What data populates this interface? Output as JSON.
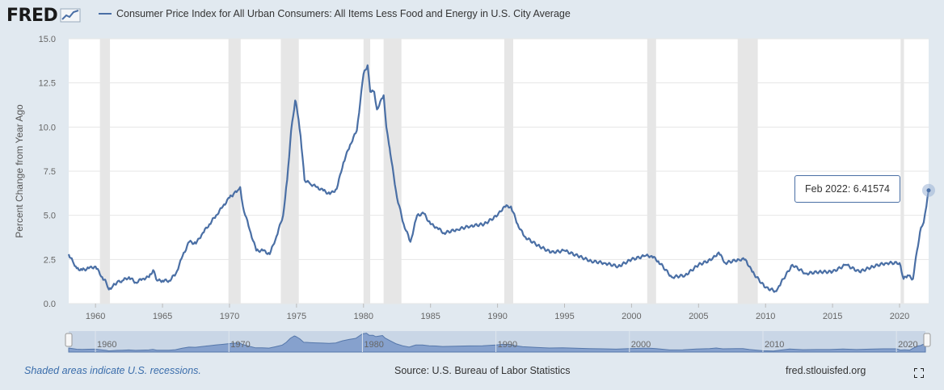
{
  "header": {
    "logo_text": "FRED",
    "legend_label": "Consumer Price Index for All Urban Consumers: All Items Less Food and Energy in U.S. City Average"
  },
  "colors": {
    "series": "#4a6fa5",
    "recession": "#e6e6e6",
    "background": "#e1e9f0"
  },
  "tooltip": {
    "date": "Feb 2022",
    "separator": ":",
    "value": "6.41574"
  },
  "footer": {
    "note": "Shaded areas indicate U.S. recessions.",
    "source": "Source: U.S. Bureau of Labor Statistics",
    "site": "fred.stlouisfed.org"
  },
  "icons": {
    "fullscreen": "fullscreen-icon",
    "logo_graph": "fred-graph-icon"
  },
  "chart_data": {
    "type": "line",
    "ylabel": "Percent Change from Year Ago",
    "ylim": [
      0,
      15
    ],
    "xlim": [
      1958.0,
      2022.17
    ],
    "y_ticks": [
      "0.0",
      "2.5",
      "5.0",
      "7.5",
      "10.0",
      "12.5",
      "15.0"
    ],
    "x_ticks": [
      "1960",
      "1965",
      "1970",
      "1975",
      "1980",
      "1985",
      "1990",
      "1995",
      "2000",
      "2005",
      "2010",
      "2015",
      "2020"
    ],
    "navigator_ticks": [
      "1960",
      "1970",
      "1980",
      "1990",
      "2000",
      "2010",
      "2020"
    ],
    "recessions": [
      [
        1960.33,
        1961.08
      ],
      [
        1969.92,
        1970.83
      ],
      [
        1973.83,
        1975.17
      ],
      [
        1980.0,
        1980.5
      ],
      [
        1981.5,
        1982.83
      ],
      [
        1990.5,
        1991.17
      ],
      [
        2001.17,
        2001.83
      ],
      [
        2007.92,
        2009.42
      ],
      [
        2020.08,
        2020.33
      ]
    ],
    "series": [
      {
        "name": "Consumer Price Index for All Urban Consumers: All Items Less Food and Energy in U.S. City Average",
        "x": [
          1958.0,
          1958.3,
          1958.6,
          1959.0,
          1959.5,
          1960.0,
          1960.5,
          1960.8,
          1961.0,
          1961.3,
          1961.6,
          1962.0,
          1962.5,
          1963.0,
          1963.5,
          1964.0,
          1964.3,
          1964.6,
          1965.0,
          1965.5,
          1966.0,
          1966.5,
          1967.0,
          1967.5,
          1968.0,
          1968.5,
          1969.0,
          1969.5,
          1970.0,
          1970.3,
          1970.6,
          1970.8,
          1971.0,
          1971.5,
          1972.0,
          1972.5,
          1973.0,
          1973.5,
          1974.0,
          1974.3,
          1974.6,
          1974.9,
          1975.0,
          1975.3,
          1975.6,
          1976.0,
          1976.5,
          1977.0,
          1977.5,
          1978.0,
          1978.5,
          1979.0,
          1979.5,
          1980.0,
          1980.3,
          1980.5,
          1980.8,
          1981.0,
          1981.5,
          1981.7,
          1981.9,
          1982.0,
          1982.5,
          1983.0,
          1983.5,
          1984.0,
          1984.5,
          1985.0,
          1985.5,
          1986.0,
          1987.0,
          1988.0,
          1989.0,
          1990.0,
          1990.5,
          1991.0,
          1991.5,
          1992.0,
          1993.0,
          1994.0,
          1995.0,
          1996.0,
          1997.0,
          1998.0,
          1999.0,
          2000.0,
          2001.0,
          2001.5,
          2002.0,
          2003.0,
          2004.0,
          2005.0,
          2006.0,
          2006.5,
          2007.0,
          2008.0,
          2008.5,
          2009.0,
          2010.0,
          2010.8,
          2011.0,
          2012.0,
          2013.0,
          2014.0,
          2015.0,
          2016.0,
          2017.0,
          2018.0,
          2019.0,
          2020.0,
          2020.3,
          2020.6,
          2021.0,
          2021.3,
          2021.6,
          2021.8,
          2022.0,
          2022.17
        ],
        "values": [
          2.8,
          2.4,
          2.0,
          1.9,
          2.0,
          2.1,
          1.5,
          1.2,
          0.8,
          1.0,
          1.2,
          1.3,
          1.5,
          1.2,
          1.4,
          1.5,
          1.9,
          1.3,
          1.3,
          1.3,
          1.7,
          2.7,
          3.5,
          3.4,
          4.0,
          4.5,
          5.0,
          5.5,
          6.0,
          6.2,
          6.4,
          6.6,
          5.5,
          4.2,
          3.0,
          3.0,
          2.8,
          3.8,
          5.0,
          7.0,
          9.8,
          11.5,
          11.2,
          9.5,
          7.0,
          6.8,
          6.6,
          6.4,
          6.2,
          6.5,
          8.0,
          9.0,
          9.8,
          13.0,
          13.5,
          12.0,
          12.0,
          11.0,
          11.8,
          10.0,
          9.0,
          8.5,
          6.0,
          4.5,
          3.5,
          5.0,
          5.1,
          4.5,
          4.3,
          4.0,
          4.2,
          4.4,
          4.5,
          5.0,
          5.5,
          5.5,
          4.5,
          3.8,
          3.3,
          2.9,
          3.0,
          2.7,
          2.4,
          2.3,
          2.1,
          2.5,
          2.7,
          2.7,
          2.4,
          1.5,
          1.6,
          2.2,
          2.5,
          2.9,
          2.3,
          2.5,
          2.5,
          1.8,
          0.9,
          0.7,
          1.0,
          2.2,
          1.7,
          1.8,
          1.8,
          2.2,
          1.8,
          2.1,
          2.3,
          2.3,
          1.4,
          1.6,
          1.4,
          3.0,
          4.3,
          4.6,
          5.5,
          6.41574
        ]
      }
    ]
  }
}
